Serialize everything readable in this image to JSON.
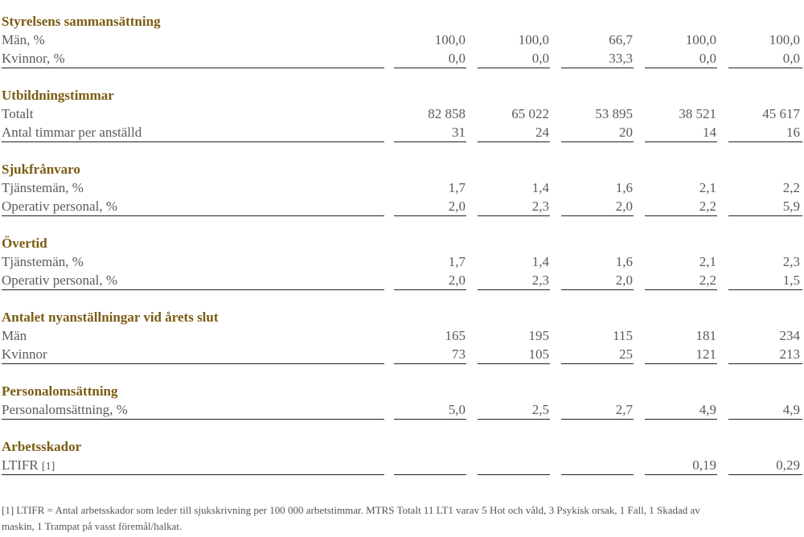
{
  "sections": [
    {
      "title": "Styrelsens sammansättning",
      "rows": [
        {
          "label": "Män, %",
          "note": "",
          "values": [
            "100,0",
            "100,0",
            "66,7",
            "100,0",
            "100,0"
          ]
        },
        {
          "label": "Kvinnor, %",
          "note": "",
          "values": [
            "0,0",
            "0,0",
            "33,3",
            "0,0",
            "0,0"
          ]
        }
      ]
    },
    {
      "title": "Utbildningstimmar",
      "rows": [
        {
          "label": "Totalt",
          "note": "",
          "values": [
            "82 858",
            "65 022",
            "53 895",
            "38 521",
            "45 617"
          ]
        },
        {
          "label": "Antal timmar per anställd",
          "note": "",
          "values": [
            "31",
            "24",
            "20",
            "14",
            "16"
          ]
        }
      ]
    },
    {
      "title": "Sjukfrånvaro",
      "rows": [
        {
          "label": "Tjänstemän, %",
          "note": "",
          "values": [
            "1,7",
            "1,4",
            "1,6",
            "2,1",
            "2,2"
          ]
        },
        {
          "label": "Operativ personal, %",
          "note": "",
          "values": [
            "2,0",
            "2,3",
            "2,0",
            "2,2",
            "5,9"
          ]
        }
      ]
    },
    {
      "title": "Övertid",
      "rows": [
        {
          "label": "Tjänstemän, %",
          "note": "",
          "values": [
            "1,7",
            "1,4",
            "1,6",
            "2,1",
            "2,3"
          ]
        },
        {
          "label": "Operativ personal, %",
          "note": "",
          "values": [
            "2,0",
            "2,3",
            "2,0",
            "2,2",
            "1,5"
          ]
        }
      ]
    },
    {
      "title": "Antalet nyanställningar vid årets slut",
      "rows": [
        {
          "label": "Män",
          "note": "",
          "values": [
            "165",
            "195",
            "115",
            "181",
            "234"
          ]
        },
        {
          "label": "Kvinnor",
          "note": "",
          "values": [
            "73",
            "105",
            "25",
            "121",
            "213"
          ]
        }
      ]
    },
    {
      "title": "Personalomsättning",
      "rows": [
        {
          "label": "Personalomsättning, %",
          "note": "",
          "values": [
            "5,0",
            "2,5",
            "2,7",
            "4,9",
            "4,9"
          ]
        }
      ]
    },
    {
      "title": "Arbetsskador",
      "rows": [
        {
          "label": "LTIFR",
          "note": "[1]",
          "values": [
            "",
            "",
            "",
            "0,19",
            "0,29"
          ]
        }
      ]
    }
  ],
  "footnote": "[1] LTIFR = Antal arbetsskador som leder till sjukskrivning per 100 000 arbetstimmar. MTRS Totalt 11 LT1 varav 5 Hot och våld, 3 Psykisk orsak, 1 Fall, 1 Skadad av maskin, 1 Trampat på vasst föremål/halkat."
}
